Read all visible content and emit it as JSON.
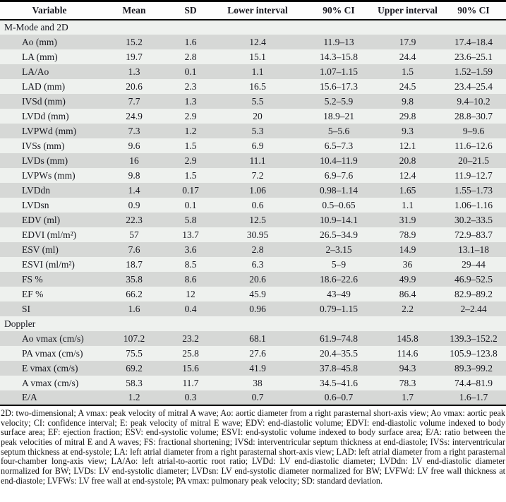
{
  "table": {
    "columns": [
      "Variable",
      "Mean",
      "SD",
      "Lower interval",
      "90% CI",
      "Upper interval",
      "90% CI"
    ],
    "sections": [
      {
        "title": "M-Mode and 2D",
        "rows": [
          {
            "variable": "Ao (mm)",
            "values": [
              "15.2",
              "1.6",
              "12.4",
              "11.9–13",
              "17.9",
              "17.4–18.4"
            ]
          },
          {
            "variable": "LA (mm)",
            "values": [
              "19.7",
              "2.8",
              "15.1",
              "14.3–15.8",
              "24.4",
              "23.6–25.1"
            ]
          },
          {
            "variable": "LA/Ao",
            "values": [
              "1.3",
              "0.1",
              "1.1",
              "1.07–1.15",
              "1.5",
              "1.52–1.59"
            ]
          },
          {
            "variable": "LAD (mm)",
            "values": [
              "20.6",
              "2.3",
              "16.5",
              "15.6–17.3",
              "24.5",
              "23.4–25.4"
            ]
          },
          {
            "variable": "IVSd (mm)",
            "values": [
              "7.7",
              "1.3",
              "5.5",
              "5.2–5.9",
              "9.8",
              "9.4–10.2"
            ]
          },
          {
            "variable": "LVDd (mm)",
            "values": [
              "24.9",
              "2.9",
              "20",
              "18.9–21",
              "29.8",
              "28.8–30.7"
            ]
          },
          {
            "variable": "LVPWd (mm)",
            "values": [
              "7.3",
              "1.2",
              "5.3",
              "5–5.6",
              "9.3",
              "9–9.6"
            ]
          },
          {
            "variable": "IVSs (mm)",
            "values": [
              "9.6",
              "1.5",
              "6.9",
              "6.5–7.3",
              "12.1",
              "11.6–12.6"
            ]
          },
          {
            "variable": "LVDs (mm)",
            "values": [
              "16",
              "2.9",
              "11.1",
              "10.4–11.9",
              "20.8",
              "20–21.5"
            ]
          },
          {
            "variable": "LVPWs (mm)",
            "values": [
              "9.8",
              "1.5",
              "7.2",
              "6.9–7.6",
              "12.4",
              "11.9–12.7"
            ]
          },
          {
            "variable": "LVDdn",
            "values": [
              "1.4",
              "0.17",
              "1.06",
              "0.98–1.14",
              "1.65",
              "1.55–1.73"
            ]
          },
          {
            "variable": "LVDsn",
            "values": [
              "0.9",
              "0.1",
              "0.6",
              "0.5–0.65",
              "1.1",
              "1.06–1.16"
            ]
          },
          {
            "variable": "EDV (ml)",
            "values": [
              "22.3",
              "5.8",
              "12.5",
              "10.9–14.1",
              "31.9",
              "30.2–33.5"
            ]
          },
          {
            "variable": "EDVI (ml/m²)",
            "values": [
              "57",
              "13.7",
              "30.95",
              "26.5–34.9",
              "78.9",
              "72.9–83.7"
            ]
          },
          {
            "variable": "ESV (ml)",
            "values": [
              "7.6",
              "3.6",
              "2.8",
              "2–3.15",
              "14.9",
              "13.1–18"
            ]
          },
          {
            "variable": "ESVI (ml/m²)",
            "values": [
              "18.7",
              "8.5",
              "6.3",
              "5–9",
              "36",
              "29–44"
            ]
          },
          {
            "variable": "FS %",
            "values": [
              "35.8",
              "8.6",
              "20.6",
              "18.6–22.6",
              "49.9",
              "46.9–52.5"
            ]
          },
          {
            "variable": "EF %",
            "values": [
              "66.2",
              "12",
              "45.9",
              "43–49",
              "86.4",
              "82.9–89.2"
            ]
          },
          {
            "variable": "SI",
            "values": [
              "1.6",
              "0.4",
              "0.96",
              "0.79–1.15",
              "2.2",
              "2–2.44"
            ]
          }
        ]
      },
      {
        "title": "Doppler",
        "rows": [
          {
            "variable": "Ao vmax (cm/s)",
            "values": [
              "107.2",
              "23.2",
              "68.1",
              "61.9–74.8",
              "145.8",
              "139.3–152.2"
            ]
          },
          {
            "variable": "PA vmax (cm/s)",
            "values": [
              "75.5",
              "25.8",
              "27.6",
              "20.4–35.5",
              "114.6",
              "105.9–123.8"
            ]
          },
          {
            "variable": "E vmax (cm/s)",
            "values": [
              "69.2",
              "15.6",
              "41.9",
              "37.8–45.8",
              "94.3",
              "89.3–99.2"
            ]
          },
          {
            "variable": "A vmax (cm/s)",
            "values": [
              "58.3",
              "11.7",
              "38",
              "34.5–41.6",
              "78.3",
              "74.4–81.9"
            ]
          },
          {
            "variable": "E/A",
            "values": [
              "1.2",
              "0.3",
              "0.7",
              "0.6–0.7",
              "1.7",
              "1.6–1.7"
            ]
          }
        ]
      }
    ],
    "footnote": "2D: two-dimensional; A vmax: peak velocity of mitral A wave; Ao: aortic diameter from a right parasternal short-axis view; Ao vmax: aortic peak velocity; CI: confidence interval; E: peak velocity of mitral E wave; EDV: end-diastolic volume; EDVI: end-diastolic volume indexed to body surface area; EF: ejection fraction; ESV: end-systolic volume; ESVI: end-systolic volume indexed to body surface area; E/A: ratio between the peak velocities of mitral E and A waves; FS: fractional shortening; IVSd: interventricular septum thickness at end-diastole; IVSs: interventricular septum thickness at end-systole; LA: left atrial diameter from a right parasternal short-axis view; LAD: left atrial diameter from a right parasternal four-chamber long-axis view; LA/Ao: left atrial-to-aortic root ratio; LVDd: LV end-diastolic diameter; LVDdn: LV end-diastolic diameter normalized for BW; LVDs: LV end-systolic diameter; LVDsn: LV end-systolic diameter normalized for BW; LVFWd: LV free wall thickness at end-diastole; LVFWs: LV free wall at end-systole; PA vmax: pulmonary peak velocity; SD: standard deviation."
  },
  "colors": {
    "shaded_row": "#d6d8d6",
    "light_row": "#eef1ee",
    "border": "#000000",
    "text": "#17171f"
  }
}
